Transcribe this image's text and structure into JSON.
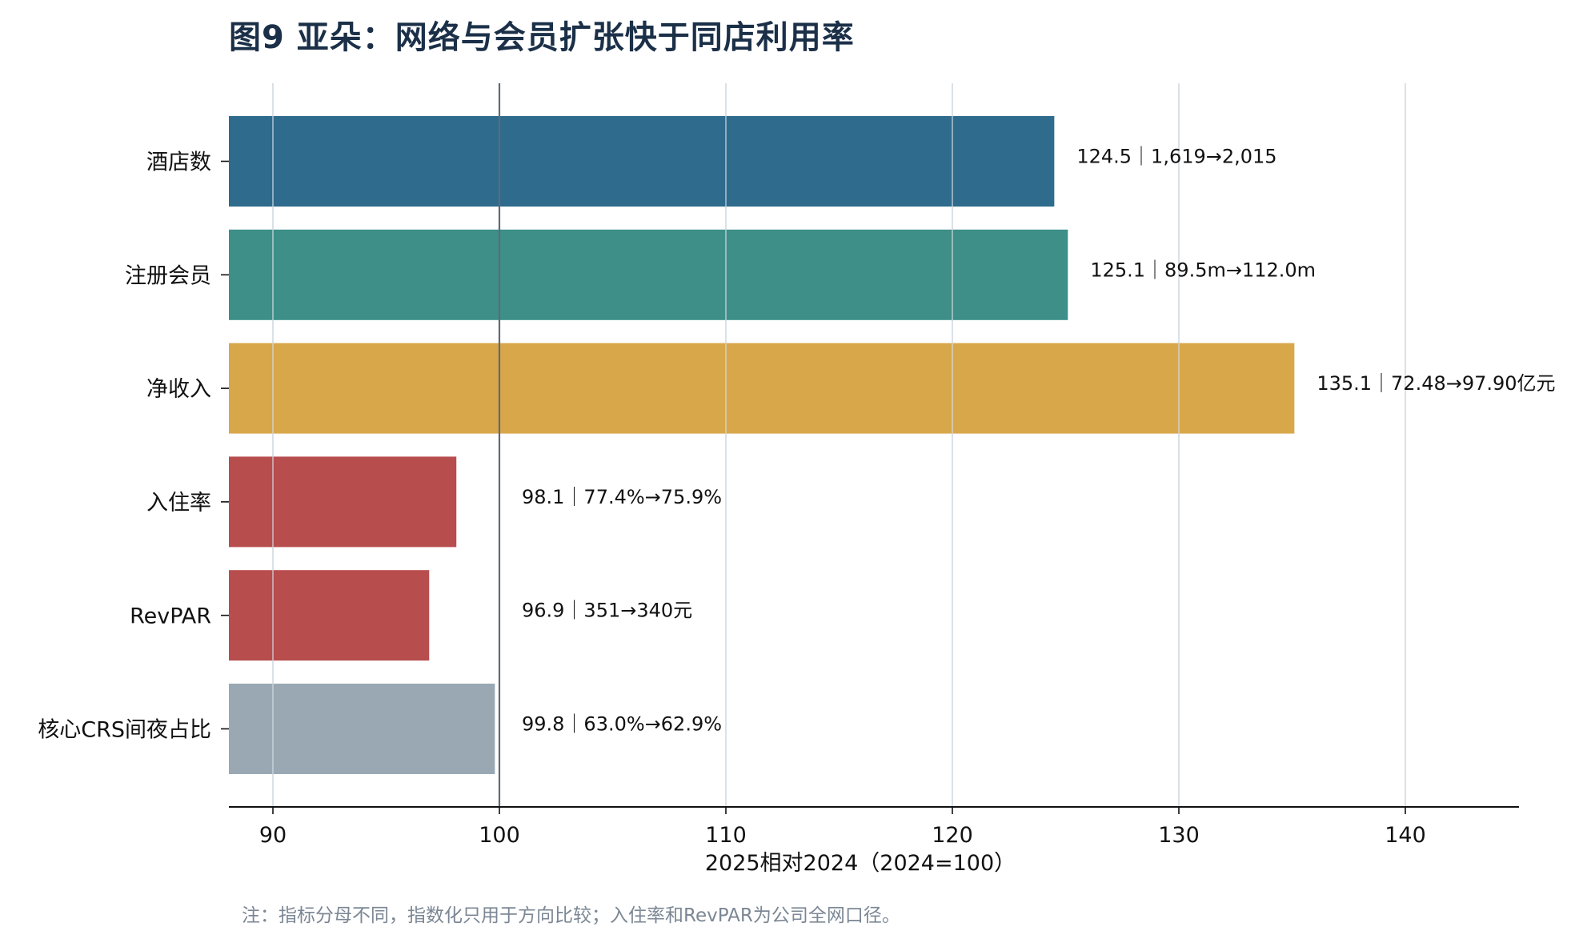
{
  "chart_data": {
    "type": "bar",
    "orientation": "horizontal",
    "title": "图9  亚朵：网络与会员扩张快于同店利用率",
    "xlabel": "2025相对2024（2024=100）",
    "ylabel": "",
    "xlim": [
      88,
      145
    ],
    "xticks": [
      90,
      100,
      110,
      120,
      130,
      140
    ],
    "reference_line": 100,
    "grid": "vertical",
    "categories": [
      "酒店数",
      "注册会员",
      "净收入",
      "入住率",
      "RevPAR",
      "核心CRS间夜占比"
    ],
    "values": [
      124.5,
      125.1,
      135.1,
      98.1,
      96.9,
      99.8
    ],
    "colors": [
      "#2e6b8c",
      "#3d8f88",
      "#d8a74a",
      "#b84d4d",
      "#b84d4d",
      "#99a8b3"
    ],
    "data_labels": [
      "124.5｜1,619→2,015",
      "125.1｜89.5m→112.0m",
      "135.1｜72.48→97.90亿元",
      "98.1｜77.4%→75.9%",
      "96.9｜351→340元",
      "99.8｜63.0%→62.9%"
    ],
    "note": "注：指标分母不同，指数化只用于方向比较；入住率和RevPAR为公司全网口径。"
  }
}
